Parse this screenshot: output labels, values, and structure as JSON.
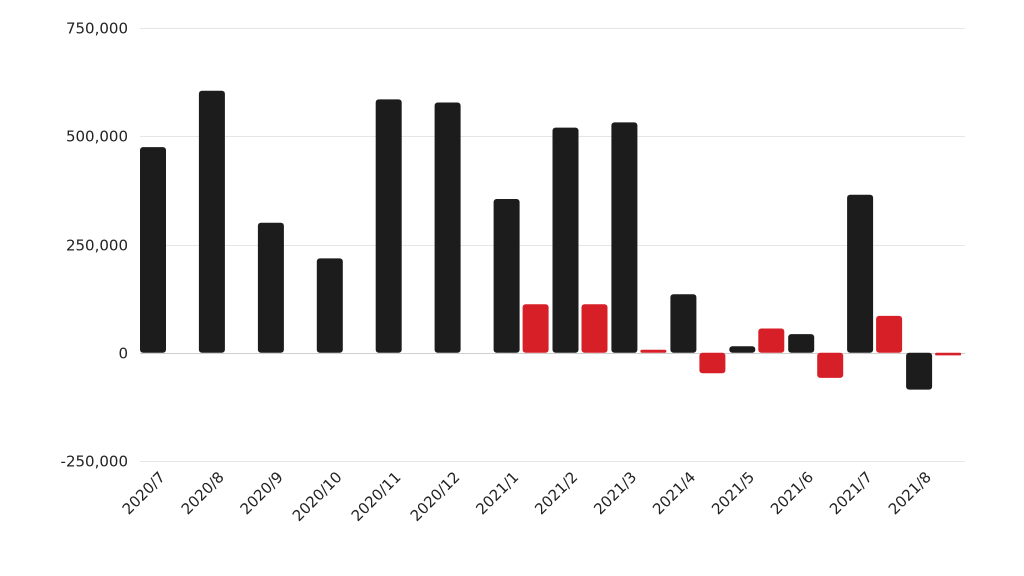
{
  "chart_data": {
    "type": "bar",
    "title": "",
    "xlabel": "",
    "ylabel": "",
    "categories": [
      "2020/7",
      "2020/8",
      "2020/9",
      "2020/10",
      "2020/11",
      "2020/12",
      "2021/1",
      "2021/2",
      "2021/3",
      "2021/4",
      "2021/5",
      "2021/6",
      "2021/7",
      "2021/8"
    ],
    "series": [
      {
        "color": "#1d1c1d",
        "values": [
          475000,
          605000,
          300000,
          218000,
          585000,
          578000,
          355000,
          520000,
          532000,
          135000,
          15000,
          43000,
          365000,
          -85000
        ]
      },
      {
        "color": "#d71f27",
        "values": [
          null,
          null,
          null,
          null,
          null,
          null,
          112000,
          112000,
          7000,
          -47000,
          56000,
          -58000,
          85000,
          -6000
        ]
      }
    ],
    "ylim": [
      -250000,
      750000
    ],
    "yticks": [
      -250000,
      0,
      250000,
      500000,
      750000
    ],
    "ytick_labels": [
      "-250,000",
      "0",
      "250,000",
      "500,000",
      "750,000"
    ],
    "grid": true,
    "legend": "none"
  }
}
